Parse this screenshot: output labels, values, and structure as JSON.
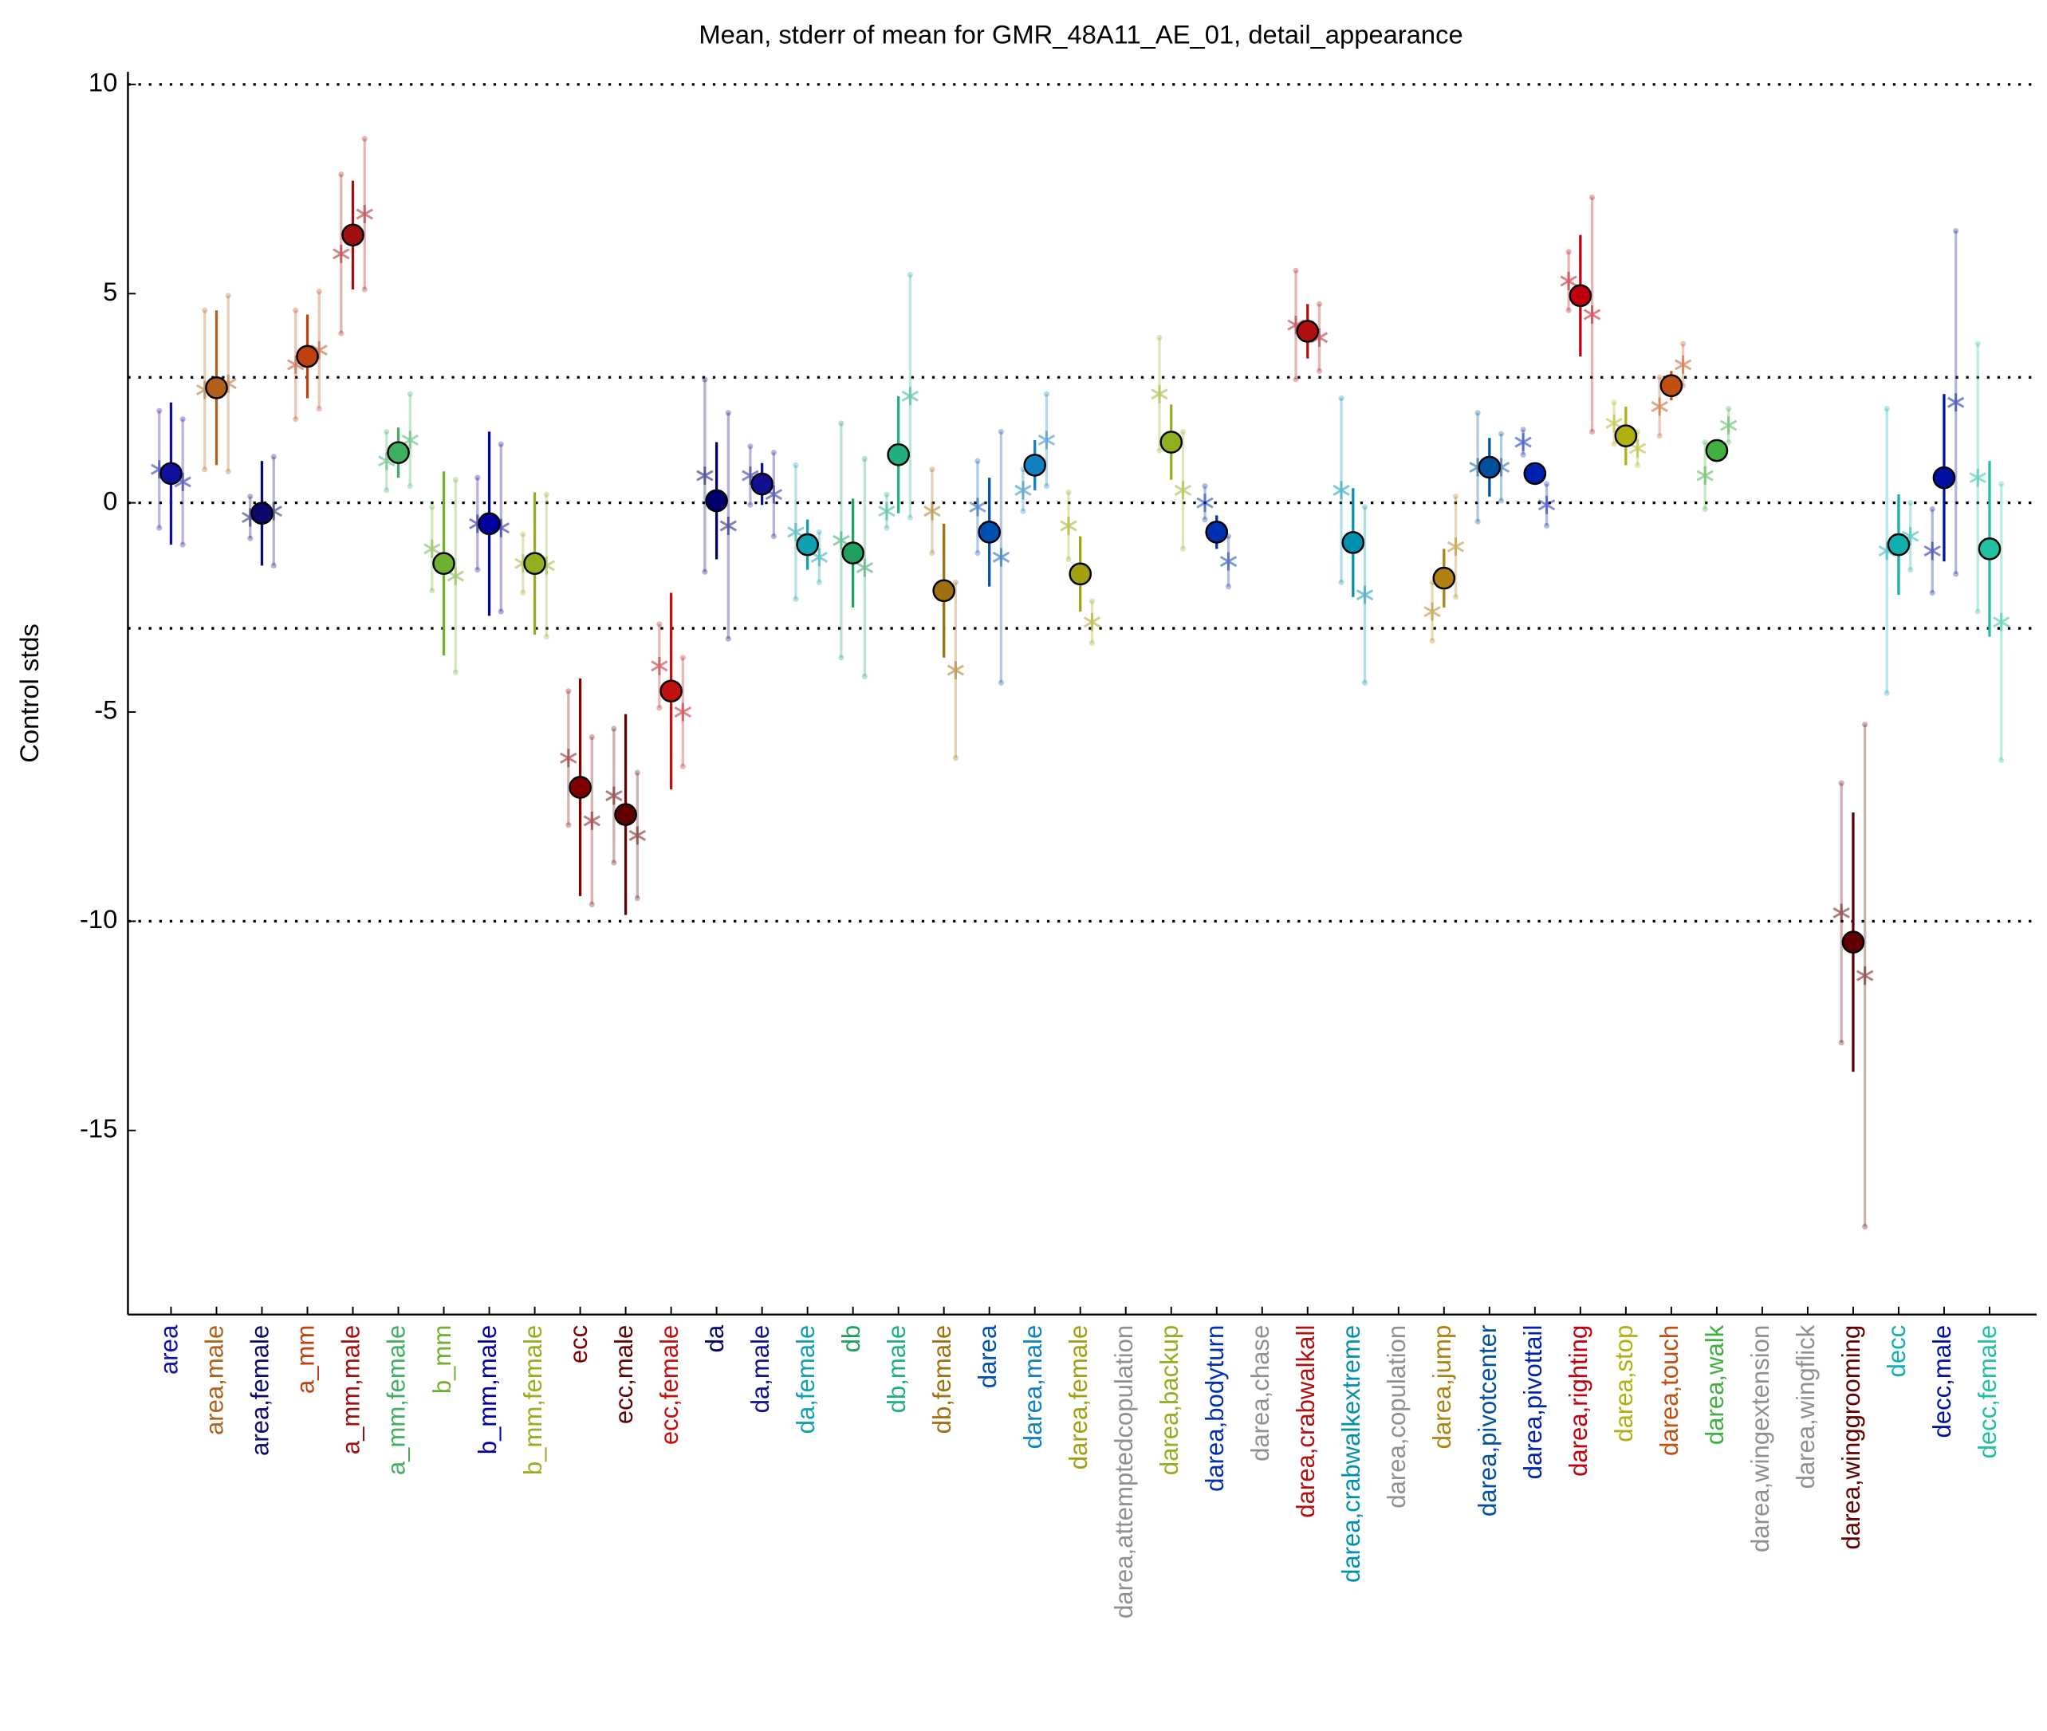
{
  "chart_data": {
    "type": "errorbar",
    "title": "Mean, stderr of mean for GMR_48A11_AE_01, detail_appearance",
    "ylabel": "Control stds",
    "ylim": [
      -19.4,
      10.3
    ],
    "yticks": [
      10,
      5,
      0,
      -5,
      -10,
      -15
    ],
    "reference_lines": [
      10,
      3,
      0,
      -3,
      -10
    ],
    "categories": [
      "area",
      "area,male",
      "area,female",
      "a_mm",
      "a_mm,male",
      "a_mm,female",
      "b_mm",
      "b_mm,male",
      "b_mm,female",
      "ecc",
      "ecc,male",
      "ecc,female",
      "da",
      "da,male",
      "da,female",
      "db",
      "db,male",
      "db,female",
      "darea",
      "darea,male",
      "darea,female",
      "darea,attemptedcopulation",
      "darea,backup",
      "darea,bodyturn",
      "darea,chase",
      "darea,crabwalkall",
      "darea,crabwalkextreme",
      "darea,copulation",
      "darea,jump",
      "darea,pivotcenter",
      "darea,pivottail",
      "darea,righting",
      "darea,stop",
      "darea,touch",
      "darea,walk",
      "darea,wingextension",
      "darea,wingflick",
      "darea,winggrooming",
      "decc",
      "decc,male",
      "decc,female"
    ],
    "colors": [
      "#1010a0",
      "#b0601a",
      "#0a0a6a",
      "#c04010",
      "#a01010",
      "#40b060",
      "#70b030",
      "#0000a0",
      "#90b020",
      "#800000",
      "#600000",
      "#c01010",
      "#000070",
      "#101090",
      "#10a0b0",
      "#20a060",
      "#20b080",
      "#a07010",
      "#0050b0",
      "#1080c0",
      "#a0a010",
      "#909090",
      "#90b020",
      "#0030b0",
      "#909090",
      "#b01010",
      "#0090b0",
      "#909090",
      "#b08010",
      "#0050a0",
      "#0020b0",
      "#c00010",
      "#b0b010",
      "#c05010",
      "#40b040",
      "#909090",
      "#909090",
      "#600000",
      "#10b0b0",
      "#0010a0",
      "#20c0a0"
    ],
    "series": [
      {
        "marker": "circle",
        "values": [
          0.7,
          2.75,
          -0.25,
          3.5,
          6.4,
          1.2,
          -1.45,
          -0.5,
          -1.45,
          -6.8,
          -7.45,
          -4.5,
          0.05,
          0.45,
          -1.0,
          -1.2,
          1.15,
          -2.1,
          -0.7,
          0.9,
          -1.7,
          null,
          1.45,
          -0.7,
          null,
          4.1,
          -0.95,
          null,
          -1.8,
          0.85,
          0.7,
          4.95,
          1.6,
          2.8,
          1.25,
          null,
          null,
          -10.5,
          -1.0,
          0.6,
          -1.1
        ],
        "errors": [
          1.7,
          1.85,
          1.25,
          1.0,
          1.3,
          0.6,
          2.2,
          2.2,
          1.7,
          2.6,
          2.4,
          2.35,
          1.4,
          0.5,
          0.6,
          1.3,
          1.4,
          1.6,
          1.3,
          0.6,
          0.9,
          null,
          0.9,
          0.4,
          null,
          0.65,
          1.3,
          null,
          0.7,
          0.7,
          0.2,
          1.45,
          0.7,
          0.35,
          0.2,
          null,
          null,
          3.1,
          1.2,
          2.0,
          2.1
        ]
      },
      {
        "marker": "star",
        "offset": -1,
        "values": [
          0.8,
          2.7,
          -0.35,
          3.3,
          5.95,
          1.0,
          -1.1,
          -0.5,
          -1.45,
          -6.1,
          -7.0,
          -3.9,
          0.65,
          0.65,
          -0.7,
          -0.9,
          -0.2,
          -0.2,
          -0.1,
          0.3,
          -0.55,
          null,
          2.6,
          0.0,
          null,
          4.25,
          0.3,
          null,
          -2.6,
          0.85,
          1.45,
          5.3,
          1.9,
          2.3,
          0.65,
          null,
          null,
          -9.8,
          -1.15,
          -1.15,
          0.6
        ],
        "errors": [
          1.4,
          1.9,
          0.5,
          1.3,
          1.9,
          0.7,
          1.0,
          1.1,
          0.7,
          1.6,
          1.6,
          1.0,
          2.3,
          0.7,
          1.6,
          2.8,
          0.4,
          1.0,
          1.1,
          0.5,
          0.8,
          null,
          1.35,
          0.4,
          null,
          1.3,
          2.2,
          null,
          0.7,
          1.3,
          0.3,
          0.7,
          0.5,
          0.7,
          0.8,
          null,
          null,
          3.1,
          3.4,
          1.0,
          3.2
        ]
      },
      {
        "marker": "star",
        "offset": 1,
        "values": [
          0.5,
          2.85,
          -0.2,
          3.65,
          6.9,
          1.5,
          -1.75,
          -0.6,
          -1.5,
          -7.6,
          -7.95,
          -5.0,
          -0.55,
          0.2,
          -1.3,
          -1.55,
          2.55,
          -4.0,
          -1.3,
          1.5,
          -2.85,
          null,
          0.3,
          -1.4,
          null,
          3.95,
          -2.2,
          null,
          -1.05,
          0.85,
          -0.05,
          4.5,
          1.3,
          3.3,
          1.85,
          null,
          null,
          -11.3,
          -0.8,
          2.4,
          -2.85
        ],
        "errors": [
          1.5,
          2.1,
          1.3,
          1.4,
          1.8,
          1.1,
          2.3,
          2.0,
          1.7,
          2.0,
          1.5,
          1.3,
          2.7,
          1.0,
          0.6,
          2.6,
          2.9,
          2.1,
          3.0,
          1.1,
          0.5,
          null,
          1.4,
          0.6,
          null,
          0.8,
          2.1,
          null,
          1.2,
          0.8,
          0.5,
          2.8,
          0.4,
          0.5,
          0.4,
          null,
          null,
          6.0,
          0.8,
          4.1,
          3.3
        ]
      }
    ]
  }
}
